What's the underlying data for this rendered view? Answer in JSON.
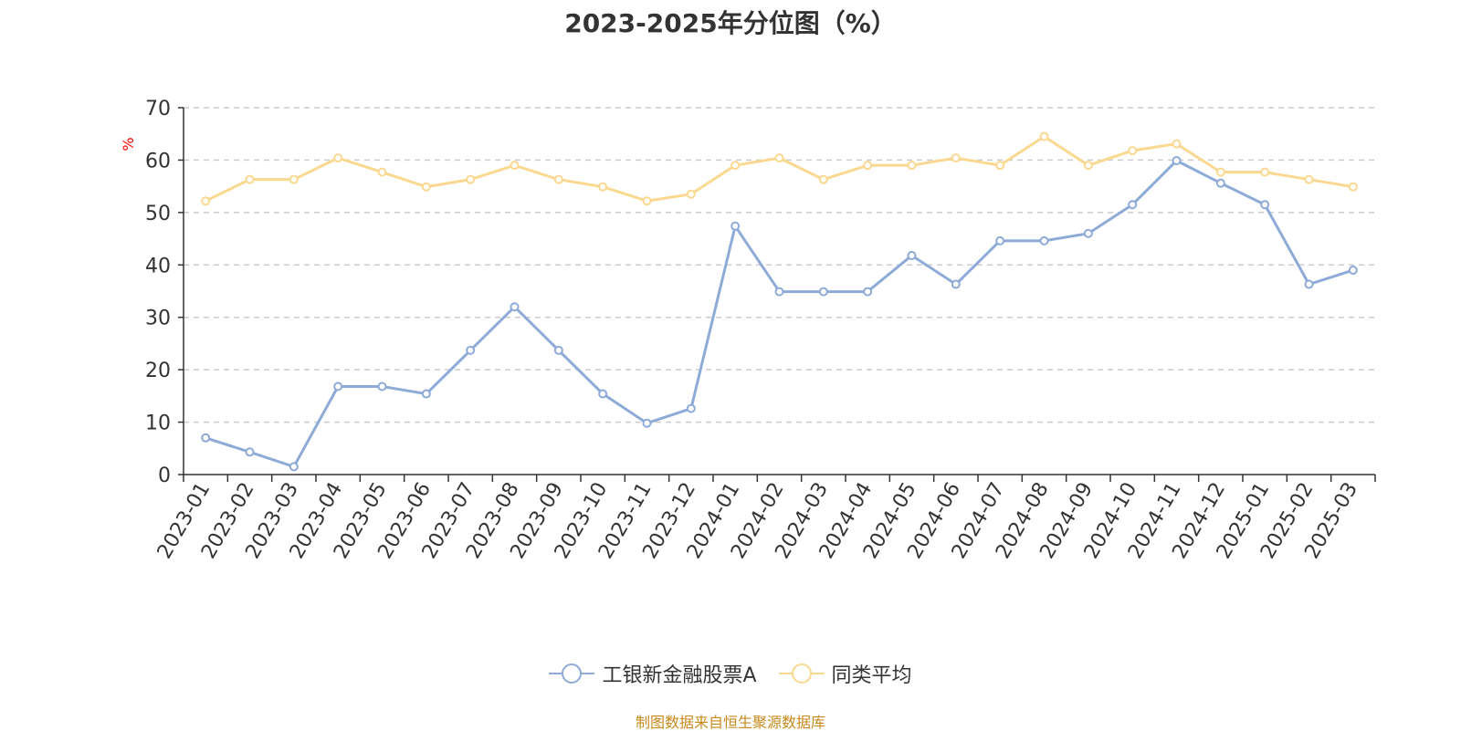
{
  "chart_data": {
    "type": "line",
    "title": "2023-2025年分位图（%）",
    "xlabel": "",
    "ylabel": "%",
    "ylim": [
      0,
      70
    ],
    "yticks": [
      0,
      10,
      20,
      30,
      40,
      50,
      60,
      70
    ],
    "grid": true,
    "legend_position": "bottom",
    "categories": [
      "2023-01",
      "2023-02",
      "2023-03",
      "2023-04",
      "2023-05",
      "2023-06",
      "2023-07",
      "2023-08",
      "2023-09",
      "2023-10",
      "2023-11",
      "2023-12",
      "2024-01",
      "2024-02",
      "2024-03",
      "2024-04",
      "2024-05",
      "2024-06",
      "2024-07",
      "2024-08",
      "2024-09",
      "2024-10",
      "2024-11",
      "2024-12",
      "2025-01",
      "2025-02",
      "2025-03"
    ],
    "series": [
      {
        "name": "工银新金融股票A",
        "color": "#8eabd8",
        "values": [
          7.0,
          4.3,
          1.5,
          16.8,
          16.8,
          15.4,
          23.7,
          32.0,
          23.7,
          15.4,
          9.8,
          12.6,
          47.4,
          34.9,
          34.9,
          34.9,
          41.8,
          36.3,
          44.6,
          44.6,
          46.0,
          51.5,
          59.9,
          55.6,
          51.5,
          36.3,
          39.0
        ]
      },
      {
        "name": "同类平均",
        "color": "#fbd88f",
        "values": [
          52.2,
          56.3,
          56.3,
          60.4,
          57.7,
          54.9,
          56.3,
          59.0,
          56.3,
          54.9,
          52.2,
          53.5,
          59.0,
          60.4,
          56.3,
          59.0,
          59.0,
          60.4,
          59.0,
          64.5,
          59.0,
          61.8,
          63.1,
          57.7,
          57.7,
          56.3,
          54.9
        ]
      }
    ]
  },
  "source_text": "制图数据来自恒生聚源数据库"
}
